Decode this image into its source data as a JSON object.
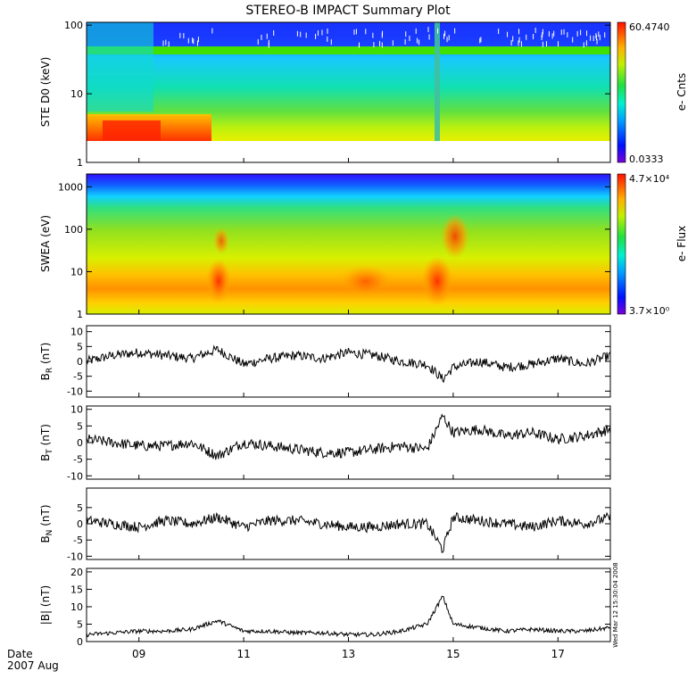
{
  "title": "STEREO-B IMPACT Summary Plot",
  "footer": {
    "date_label": "Date",
    "month_label": "2007 Aug",
    "stamp": "Wed Mar 12 15:30:04 2008"
  },
  "x_ticks": [
    "09",
    "11",
    "13",
    "15",
    "17"
  ],
  "panels": [
    {
      "id": "ste",
      "type": "heatmap",
      "ylabel": "STE D0 (keV)",
      "yscale": "log",
      "ylim": [
        1,
        110
      ],
      "yticks": [
        "1",
        "10",
        "100"
      ],
      "colorbar": {
        "label": "e- Cnts",
        "max": "60.4740",
        "min": "0.0333"
      }
    },
    {
      "id": "swea",
      "type": "heatmap",
      "ylabel": "SWEA (eV)",
      "yscale": "log",
      "ylim": [
        1,
        2000
      ],
      "yticks": [
        "1",
        "10",
        "100",
        "1000"
      ],
      "colorbar": {
        "label": "e- Flux",
        "max": "4.7×10⁴",
        "min": "3.7×10⁰"
      }
    },
    {
      "id": "br",
      "type": "line",
      "ylabel": "B_R (nT)",
      "ylim": [
        -12,
        12
      ],
      "yticks": [
        "-10",
        "-5",
        "0",
        "5",
        "10"
      ]
    },
    {
      "id": "bt",
      "type": "line",
      "ylabel": "B_T (nT)",
      "ylim": [
        -11,
        11
      ],
      "yticks": [
        "-10",
        "-5",
        "0",
        "5",
        "10"
      ]
    },
    {
      "id": "bn",
      "type": "line",
      "ylabel": "B_N (nT)",
      "ylim": [
        -11,
        11
      ],
      "yticks": [
        "-10",
        "-5",
        "0",
        "5"
      ]
    },
    {
      "id": "bmag",
      "type": "line",
      "ylabel": "|B| (nT)",
      "ylim": [
        0,
        21
      ],
      "yticks": [
        "0",
        "5",
        "10",
        "15",
        "20"
      ]
    }
  ],
  "chart_data": [
    {
      "type": "heatmap",
      "title": "STEREO-B IMPACT Summary Plot",
      "xlabel": "Date 2007 Aug",
      "ylabel": "STE D0 (keV)",
      "x_range_days": [
        8.0,
        18.0
      ],
      "y_range_keV": [
        2,
        100
      ],
      "colorbar_range": [
        0.0333,
        60.474
      ],
      "features": [
        {
          "x_range": [
            8.0,
            10.5
          ],
          "y_range": [
            2,
            3.5
          ],
          "level": "high"
        },
        {
          "x_range": [
            14.7,
            14.75
          ],
          "y_range": [
            2,
            100
          ],
          "level": "low-mid"
        },
        {
          "y_value": 45,
          "x_range": [
            8.0,
            18.0
          ],
          "level": "band"
        }
      ]
    },
    {
      "type": "heatmap",
      "ylabel": "SWEA (eV)",
      "x_range_days": [
        8.0,
        18.0
      ],
      "y_range_eV": [
        1,
        2000
      ],
      "colorbar_range": [
        3.7,
        47000
      ],
      "features": [
        {
          "x_range": [
            8.0,
            18.0
          ],
          "y_range": [
            3,
            10
          ],
          "level": "high"
        },
        {
          "x_range": [
            10.4,
            10.7
          ],
          "y_range": [
            2,
            80
          ],
          "level": "high"
        },
        {
          "x_range": [
            14.5,
            15.3
          ],
          "y_range": [
            2,
            200
          ],
          "level": "high"
        }
      ]
    },
    {
      "type": "line",
      "ylabel": "B_R (nT)",
      "ylim": [
        -12,
        12
      ],
      "x": [
        8.0,
        8.5,
        9.0,
        9.5,
        10.0,
        10.5,
        11.0,
        11.5,
        12.0,
        12.5,
        13.0,
        13.5,
        14.0,
        14.5,
        14.8,
        15.0,
        15.5,
        16.0,
        16.5,
        17.0,
        17.5,
        18.0
      ],
      "values": [
        0,
        2,
        3,
        2,
        1,
        4,
        -1,
        1,
        2,
        1,
        3,
        2,
        0,
        -1,
        -6,
        -2,
        0,
        -2,
        -1,
        1,
        -1,
        2
      ]
    },
    {
      "type": "line",
      "ylabel": "B_T (nT)",
      "ylim": [
        -11,
        11
      ],
      "x": [
        8.0,
        8.5,
        9.0,
        9.5,
        10.0,
        10.5,
        11.0,
        11.5,
        12.0,
        12.5,
        13.0,
        13.5,
        14.0,
        14.5,
        14.8,
        15.0,
        15.5,
        16.0,
        16.5,
        17.0,
        17.5,
        18.0
      ],
      "values": [
        1,
        0,
        -1,
        -1,
        0,
        -4,
        0,
        -1,
        -2,
        -3,
        -3,
        -2,
        -1,
        -2,
        8,
        3,
        4,
        2,
        3,
        1,
        2,
        4
      ]
    },
    {
      "type": "line",
      "ylabel": "B_N (nT)",
      "ylim": [
        -11,
        11
      ],
      "x": [
        8.0,
        8.5,
        9.0,
        9.5,
        10.0,
        10.5,
        11.0,
        11.5,
        12.0,
        12.5,
        13.0,
        13.5,
        14.0,
        14.5,
        14.8,
        15.0,
        15.5,
        16.0,
        16.5,
        17.0,
        17.5,
        18.0
      ],
      "values": [
        1,
        0,
        -1,
        1,
        0,
        2,
        -1,
        1,
        1,
        0,
        -1,
        -1,
        0,
        0,
        -8,
        2,
        1,
        0,
        -1,
        1,
        0,
        2
      ]
    },
    {
      "type": "line",
      "ylabel": "|B| (nT)",
      "ylim": [
        0,
        21
      ],
      "x": [
        8.0,
        8.5,
        9.0,
        9.5,
        10.0,
        10.5,
        11.0,
        11.5,
        12.0,
        12.5,
        13.0,
        13.5,
        14.0,
        14.5,
        14.8,
        15.0,
        15.5,
        16.0,
        16.5,
        17.0,
        17.5,
        18.0
      ],
      "values": [
        2,
        2.5,
        3,
        3,
        3.5,
        6,
        3,
        3,
        2.5,
        2.5,
        2,
        2,
        3,
        5,
        13,
        5,
        4,
        3,
        3.5,
        3,
        3,
        4
      ]
    }
  ]
}
